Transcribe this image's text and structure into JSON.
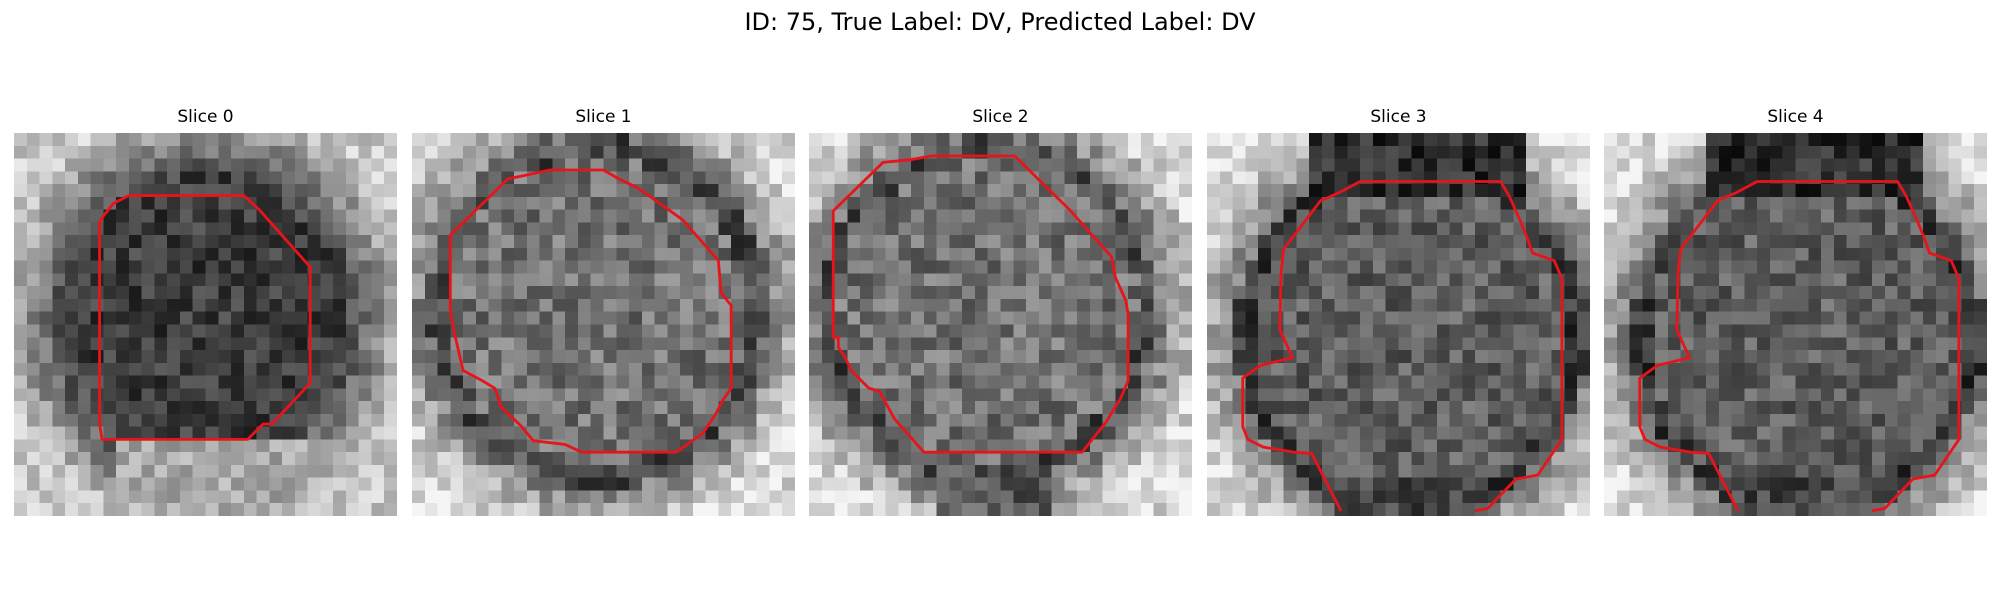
{
  "figure": {
    "title": "ID: 75, True Label: DV, Predicted Label: DV"
  },
  "colors": {
    "contour": "#e8141c",
    "background": "#ffffff"
  },
  "panels": [
    {
      "title": "Slice 0"
    },
    {
      "title": "Slice 1"
    },
    {
      "title": "Slice 2"
    },
    {
      "title": "Slice 3"
    },
    {
      "title": "Slice 4"
    }
  ]
}
